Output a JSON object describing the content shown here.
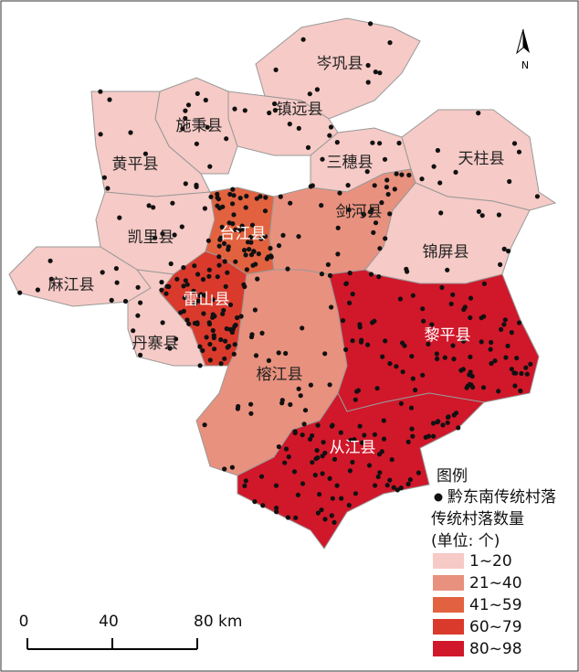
{
  "map": {
    "counties": [
      {
        "name": "岑巩县",
        "color": "#f6cac6",
        "label_color": "#222"
      },
      {
        "name": "镇远县",
        "color": "#f6cac6",
        "label_color": "#222"
      },
      {
        "name": "施秉县",
        "color": "#f6cac6",
        "label_color": "#222"
      },
      {
        "name": "黄平县",
        "color": "#f6cac6",
        "label_color": "#222"
      },
      {
        "name": "三穗县",
        "color": "#f6cac6",
        "label_color": "#222"
      },
      {
        "name": "天柱县",
        "color": "#f6cac6",
        "label_color": "#222"
      },
      {
        "name": "凯里县",
        "color": "#f6cac6",
        "label_color": "#222"
      },
      {
        "name": "麻江县",
        "color": "#f6cac6",
        "label_color": "#222"
      },
      {
        "name": "台江县",
        "color": "#e2623f",
        "label_color": "#fff"
      },
      {
        "name": "剑河县",
        "color": "#e8917e",
        "label_color": "#222"
      },
      {
        "name": "锦屏县",
        "color": "#f6cac6",
        "label_color": "#222"
      },
      {
        "name": "雷山县",
        "color": "#d93a2c",
        "label_color": "#fff"
      },
      {
        "name": "丹寨县",
        "color": "#f6cac6",
        "label_color": "#222"
      },
      {
        "name": "榕江县",
        "color": "#e8917e",
        "label_color": "#222"
      },
      {
        "name": "黎平县",
        "color": "#d0182a",
        "label_color": "#fff"
      },
      {
        "name": "从江县",
        "color": "#d0182a",
        "label_color": "#fff"
      }
    ],
    "north_arrow": "N",
    "legend": {
      "title": "图例",
      "point_label": "黔东南传统村落",
      "fill_title": "传统村落数量",
      "fill_unit": "(单位: 个)",
      "classes": [
        {
          "label": "1~20",
          "color": "#f6cac6"
        },
        {
          "label": "21~40",
          "color": "#e8917e"
        },
        {
          "label": "41~59",
          "color": "#e2623f"
        },
        {
          "label": "60~79",
          "color": "#d93a2c"
        },
        {
          "label": "80~98",
          "color": "#d0182a"
        }
      ]
    },
    "scale_bar": {
      "ticks": [
        0,
        40,
        {
          "value": 80,
          "label": "80 km"
        }
      ]
    }
  }
}
